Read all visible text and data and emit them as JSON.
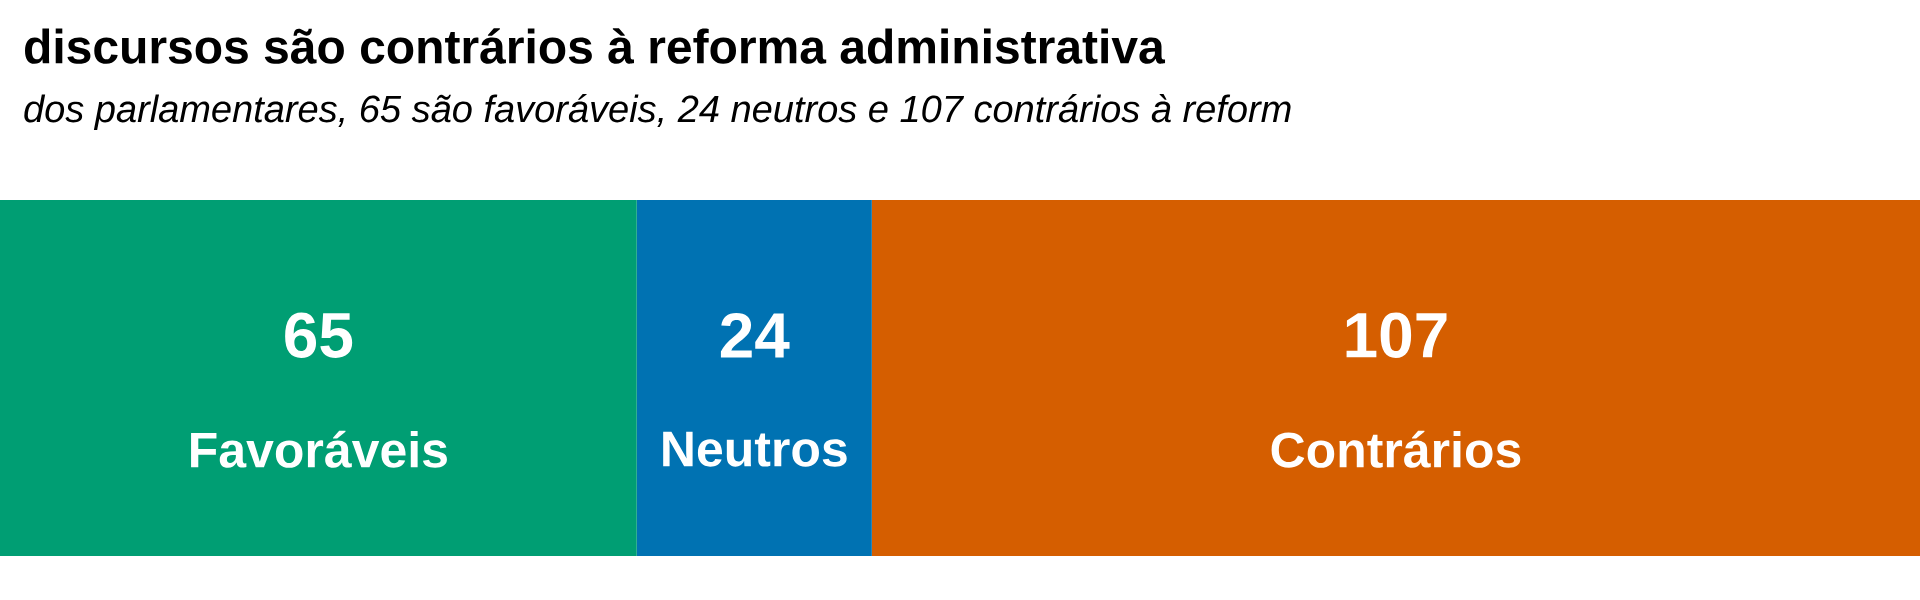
{
  "chart_data": {
    "type": "bar",
    "title": "discursos são contrários à reforma administrativa",
    "subtitle": "dos parlamentares, 65 são favoráveis, 24 neutros e 107 contrários à reform",
    "stacked": true,
    "orientation": "horizontal",
    "data_labels": true,
    "categories": [
      null
    ],
    "series": [
      {
        "name": "Favoráveis",
        "color": "#009e73",
        "values": [
          65
        ]
      },
      {
        "name": "Neutros",
        "color": "#0072b2",
        "values": [
          24
        ]
      },
      {
        "name": "Contrários",
        "color": "#d55e00",
        "values": [
          107
        ]
      }
    ]
  }
}
